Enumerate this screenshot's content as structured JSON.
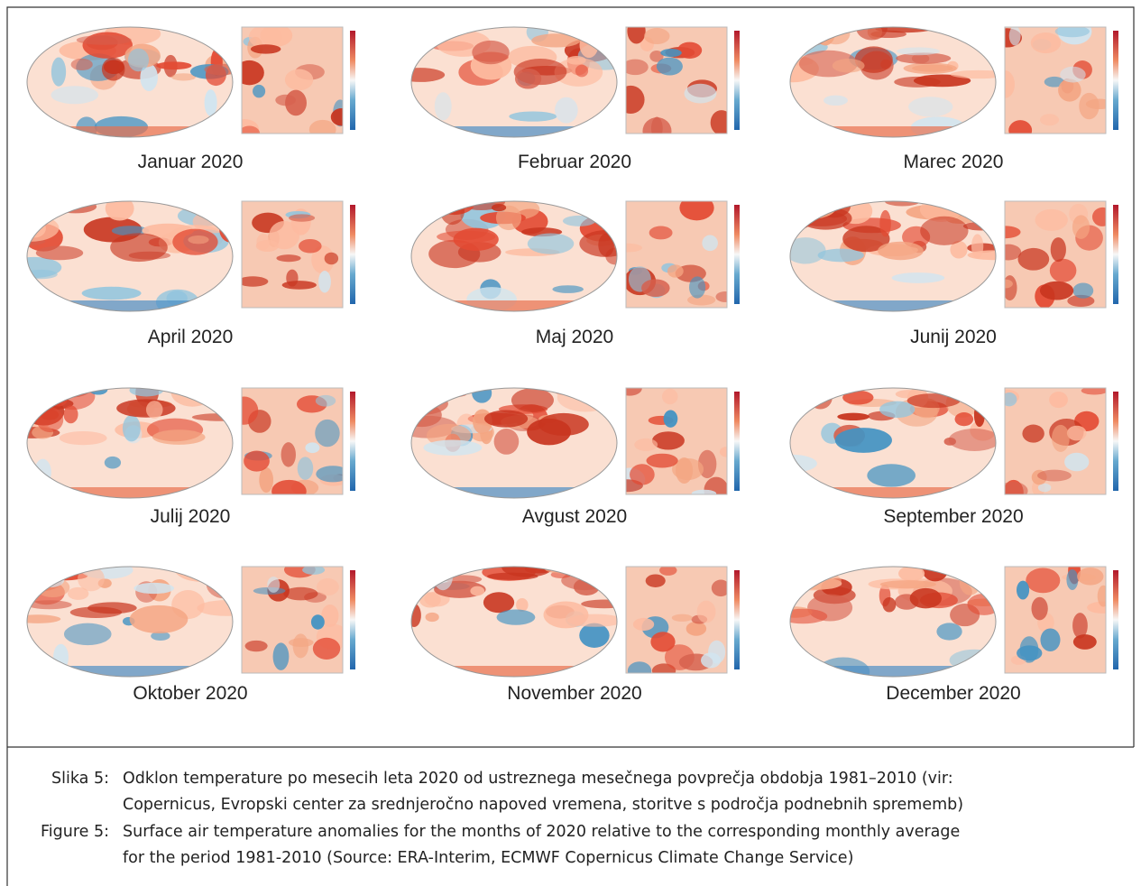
{
  "panels": [
    {
      "label": "Januar 2020"
    },
    {
      "label": "Februar 2020"
    },
    {
      "label": "Marec 2020"
    },
    {
      "label": "April 2020"
    },
    {
      "label": "Maj 2020"
    },
    {
      "label": "Junij 2020"
    },
    {
      "label": "Julij 2020"
    },
    {
      "label": "Avgust 2020"
    },
    {
      "label": "September 2020"
    },
    {
      "label": "Oktober 2020"
    },
    {
      "label": "November 2020"
    },
    {
      "label": "December 2020"
    }
  ],
  "caption": {
    "entries": [
      {
        "label": "Slika 5:",
        "lines": [
          "Odklon temperature po mesecih leta 2020 od ustreznega mesečnega povprečja obdobja 1981–2010 (vir:",
          "Copernicus, Evropski center za srednjeročno napoved vremena, storitve s področja podnebnih sprememb)"
        ]
      },
      {
        "label": "Figure 5:",
        "lines": [
          "Surface air temperature anomalies for the months of 2020 relative to the corresponding monthly average",
          "for the period 1981-2010 (Source: ERA-Interim, ECMWF Copernicus Climate Change Service)"
        ]
      }
    ]
  }
}
